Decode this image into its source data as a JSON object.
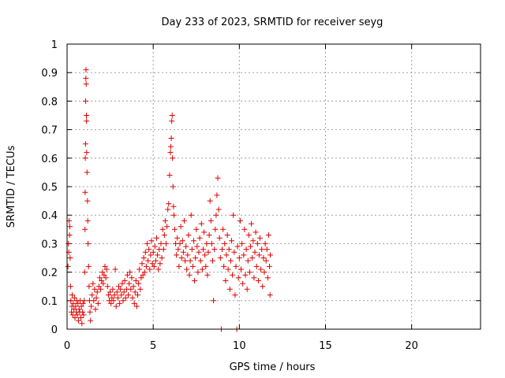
{
  "chart_data": {
    "type": "scatter",
    "title": "Day 233 of 2023, SRMTID for receiver seyg",
    "xlabel": "GPS time / hours",
    "ylabel": "SRMTID / TECUs",
    "xlim": [
      0,
      24
    ],
    "ylim": [
      0,
      1
    ],
    "xticks": [
      0,
      5,
      10,
      15,
      20
    ],
    "yticks": [
      0,
      0.1,
      0.2,
      0.3,
      0.4,
      0.5,
      0.6,
      0.7,
      0.8,
      0.9,
      1
    ],
    "grid": true,
    "legend": "none",
    "marker": "plus",
    "series_color": "#e00000",
    "series": [
      {
        "name": "seyg",
        "points": [
          [
            0.05,
            0.22
          ],
          [
            0.08,
            0.3
          ],
          [
            0.1,
            0.27
          ],
          [
            0.12,
            0.38
          ],
          [
            0.14,
            0.33
          ],
          [
            0.16,
            0.36
          ],
          [
            0.18,
            0.25
          ],
          [
            0.2,
            0.15
          ],
          [
            0.22,
            0.1
          ],
          [
            0.25,
            0.06
          ],
          [
            0.28,
            0.08
          ],
          [
            0.3,
            0.12
          ],
          [
            0.33,
            0.05
          ],
          [
            0.36,
            0.09
          ],
          [
            0.4,
            0.07
          ],
          [
            0.43,
            0.11
          ],
          [
            0.46,
            0.04
          ],
          [
            0.5,
            0.08
          ],
          [
            0.53,
            0.06
          ],
          [
            0.56,
            0.1
          ],
          [
            0.6,
            0.05
          ],
          [
            0.63,
            0.09
          ],
          [
            0.66,
            0.03
          ],
          [
            0.7,
            0.07
          ],
          [
            0.73,
            0.06
          ],
          [
            0.76,
            0.1
          ],
          [
            0.8,
            0.04
          ],
          [
            0.83,
            0.08
          ],
          [
            0.86,
            0.02
          ],
          [
            0.9,
            0.06
          ],
          [
            0.93,
            0.09
          ],
          [
            0.96,
            0.05
          ],
          [
            1.0,
            0.1
          ],
          [
            1.02,
            0.2
          ],
          [
            1.04,
            0.35
          ],
          [
            1.05,
            0.48
          ],
          [
            1.06,
            0.6
          ],
          [
            1.07,
            0.65
          ],
          [
            1.08,
            0.8
          ],
          [
            1.09,
            0.88
          ],
          [
            1.1,
            0.91
          ],
          [
            1.11,
            0.86
          ],
          [
            1.12,
            0.75
          ],
          [
            1.13,
            0.73
          ],
          [
            1.14,
            0.62
          ],
          [
            1.16,
            0.55
          ],
          [
            1.18,
            0.45
          ],
          [
            1.2,
            0.38
          ],
          [
            1.22,
            0.3
          ],
          [
            1.25,
            0.22
          ],
          [
            1.28,
            0.15
          ],
          [
            1.3,
            0.1
          ],
          [
            1.33,
            0.06
          ],
          [
            1.36,
            0.03
          ],
          [
            1.4,
            0.08
          ],
          [
            1.45,
            0.12
          ],
          [
            1.5,
            0.16
          ],
          [
            1.55,
            0.1
          ],
          [
            1.6,
            0.14
          ],
          [
            1.65,
            0.07
          ],
          [
            1.7,
            0.11
          ],
          [
            1.75,
            0.13
          ],
          [
            1.8,
            0.09
          ],
          [
            1.85,
            0.15
          ],
          [
            1.9,
            0.18
          ],
          [
            1.95,
            0.14
          ],
          [
            2.0,
            0.17
          ],
          [
            2.05,
            0.2
          ],
          [
            2.1,
            0.16
          ],
          [
            2.15,
            0.19
          ],
          [
            2.2,
            0.22
          ],
          [
            2.25,
            0.18
          ],
          [
            2.3,
            0.21
          ],
          [
            2.35,
            0.15
          ],
          [
            2.4,
            0.12
          ],
          [
            2.45,
            0.1
          ],
          [
            2.5,
            0.13
          ],
          [
            2.55,
            0.09
          ],
          [
            2.6,
            0.11
          ],
          [
            2.65,
            0.14
          ],
          [
            2.7,
            0.1
          ],
          [
            2.75,
            0.12
          ],
          [
            2.8,
            0.21
          ],
          [
            2.85,
            0.08
          ],
          [
            2.9,
            0.13
          ],
          [
            2.95,
            0.11
          ],
          [
            3.0,
            0.15
          ],
          [
            3.05,
            0.09
          ],
          [
            3.1,
            0.14
          ],
          [
            3.15,
            0.12
          ],
          [
            3.2,
            0.16
          ],
          [
            3.25,
            0.1
          ],
          [
            3.3,
            0.13
          ],
          [
            3.35,
            0.17
          ],
          [
            3.4,
            0.11
          ],
          [
            3.45,
            0.14
          ],
          [
            3.5,
            0.19
          ],
          [
            3.55,
            0.12
          ],
          [
            3.6,
            0.16
          ],
          [
            3.65,
            0.2
          ],
          [
            3.7,
            0.14
          ],
          [
            3.75,
            0.18
          ],
          [
            3.8,
            0.11
          ],
          [
            3.85,
            0.15
          ],
          [
            3.9,
            0.09
          ],
          [
            3.95,
            0.13
          ],
          [
            4.0,
            0.17
          ],
          [
            4.05,
            0.08
          ],
          [
            4.1,
            0.12
          ],
          [
            4.15,
            0.16
          ],
          [
            4.2,
            0.21
          ],
          [
            4.25,
            0.14
          ],
          [
            4.3,
            0.18
          ],
          [
            4.35,
            0.23
          ],
          [
            4.4,
            0.19
          ],
          [
            4.45,
            0.25
          ],
          [
            4.5,
            0.2
          ],
          [
            4.55,
            0.27
          ],
          [
            4.6,
            0.22
          ],
          [
            4.65,
            0.3
          ],
          [
            4.7,
            0.24
          ],
          [
            4.75,
            0.28
          ],
          [
            4.8,
            0.21
          ],
          [
            4.85,
            0.26
          ],
          [
            4.9,
            0.31
          ],
          [
            4.95,
            0.23
          ],
          [
            5.0,
            0.27
          ],
          [
            5.05,
            0.22
          ],
          [
            5.1,
            0.29
          ],
          [
            5.15,
            0.24
          ],
          [
            5.2,
            0.32
          ],
          [
            5.25,
            0.26
          ],
          [
            5.3,
            0.21
          ],
          [
            5.35,
            0.28
          ],
          [
            5.4,
            0.23
          ],
          [
            5.45,
            0.3
          ],
          [
            5.5,
            0.25
          ],
          [
            5.55,
            0.35
          ],
          [
            5.6,
            0.28
          ],
          [
            5.65,
            0.33
          ],
          [
            5.7,
            0.38
          ],
          [
            5.75,
            0.3
          ],
          [
            5.8,
            0.36
          ],
          [
            5.85,
            0.42
          ],
          [
            5.9,
            0.44
          ],
          [
            5.95,
            0.54
          ],
          [
            6.0,
            0.62
          ],
          [
            6.02,
            0.64
          ],
          [
            6.05,
            0.67
          ],
          [
            6.08,
            0.73
          ],
          [
            6.1,
            0.75
          ],
          [
            6.12,
            0.6
          ],
          [
            6.15,
            0.5
          ],
          [
            6.18,
            0.43
          ],
          [
            6.2,
            0.4
          ],
          [
            6.25,
            0.35
          ],
          [
            6.3,
            0.3
          ],
          [
            6.35,
            0.26
          ],
          [
            6.4,
            0.32
          ],
          [
            6.45,
            0.28
          ],
          [
            6.5,
            0.22
          ],
          [
            6.55,
            0.3
          ],
          [
            6.6,
            0.36
          ],
          [
            6.65,
            0.25
          ],
          [
            6.7,
            0.31
          ],
          [
            6.75,
            0.27
          ],
          [
            6.8,
            0.38
          ],
          [
            6.85,
            0.24
          ],
          [
            6.9,
            0.29
          ],
          [
            6.95,
            0.21
          ],
          [
            7.0,
            0.26
          ],
          [
            7.05,
            0.33
          ],
          [
            7.1,
            0.19
          ],
          [
            7.15,
            0.24
          ],
          [
            7.2,
            0.4
          ],
          [
            7.25,
            0.28
          ],
          [
            7.3,
            0.22
          ],
          [
            7.35,
            0.31
          ],
          [
            7.4,
            0.17
          ],
          [
            7.45,
            0.25
          ],
          [
            7.5,
            0.35
          ],
          [
            7.55,
            0.29
          ],
          [
            7.6,
            0.2
          ],
          [
            7.65,
            0.27
          ],
          [
            7.7,
            0.32
          ],
          [
            7.75,
            0.24
          ],
          [
            7.8,
            0.37
          ],
          [
            7.85,
            0.21
          ],
          [
            7.9,
            0.28
          ],
          [
            7.95,
            0.34
          ],
          [
            8.0,
            0.26
          ],
          [
            8.05,
            0.22
          ],
          [
            8.1,
            0.3
          ],
          [
            8.15,
            0.19
          ],
          [
            8.2,
            0.27
          ],
          [
            8.25,
            0.33
          ],
          [
            8.3,
            0.45
          ],
          [
            8.35,
            0.38
          ],
          [
            8.4,
            0.3
          ],
          [
            8.45,
            0.24
          ],
          [
            8.5,
            0.1
          ],
          [
            8.55,
            0.28
          ],
          [
            8.6,
            0.35
          ],
          [
            8.65,
            0.4
          ],
          [
            8.7,
            0.47
          ],
          [
            8.75,
            0.53
          ],
          [
            8.8,
            0.42
          ],
          [
            8.85,
            0.32
          ],
          [
            8.9,
            0.25
          ],
          [
            8.95,
            0.0
          ],
          [
            9.0,
            0.28
          ],
          [
            9.05,
            0.35
          ],
          [
            9.1,
            0.22
          ],
          [
            9.15,
            0.3
          ],
          [
            9.2,
            0.17
          ],
          [
            9.25,
            0.26
          ],
          [
            9.3,
            0.33
          ],
          [
            9.35,
            0.21
          ],
          [
            9.4,
            0.28
          ],
          [
            9.45,
            0.14
          ],
          [
            9.5,
            0.24
          ],
          [
            9.55,
            0.31
          ],
          [
            9.6,
            0.19
          ],
          [
            9.65,
            0.4
          ],
          [
            9.7,
            0.27
          ],
          [
            9.75,
            0.12
          ],
          [
            9.8,
            0.22
          ],
          [
            9.85,
            0.0
          ],
          [
            9.9,
            0.29
          ],
          [
            9.95,
            0.18
          ],
          [
            10.0,
            0.25
          ],
          [
            10.05,
            0.38
          ],
          [
            10.1,
            0.21
          ],
          [
            10.15,
            0.3
          ],
          [
            10.2,
            0.16
          ],
          [
            10.25,
            0.26
          ],
          [
            10.3,
            0.35
          ],
          [
            10.35,
            0.19
          ],
          [
            10.4,
            0.28
          ],
          [
            10.45,
            0.14
          ],
          [
            10.5,
            0.24
          ],
          [
            10.55,
            0.33
          ],
          [
            10.6,
            0.2
          ],
          [
            10.65,
            0.29
          ],
          [
            10.7,
            0.37
          ],
          [
            10.75,
            0.25
          ],
          [
            10.8,
            0.31
          ],
          [
            10.85,
            0.18
          ],
          [
            10.9,
            0.27
          ],
          [
            10.95,
            0.34
          ],
          [
            11.0,
            0.22
          ],
          [
            11.05,
            0.3
          ],
          [
            11.1,
            0.17
          ],
          [
            11.15,
            0.26
          ],
          [
            11.2,
            0.32
          ],
          [
            11.25,
            0.21
          ],
          [
            11.3,
            0.28
          ],
          [
            11.35,
            0.15
          ],
          [
            11.4,
            0.25
          ],
          [
            11.45,
            0.2
          ],
          [
            11.5,
            0.3
          ],
          [
            11.55,
            0.24
          ],
          [
            11.6,
            0.28
          ],
          [
            11.65,
            0.18
          ],
          [
            11.7,
            0.33
          ],
          [
            11.75,
            0.22
          ],
          [
            11.78,
            0.12
          ],
          [
            11.8,
            0.26
          ]
        ]
      }
    ]
  }
}
